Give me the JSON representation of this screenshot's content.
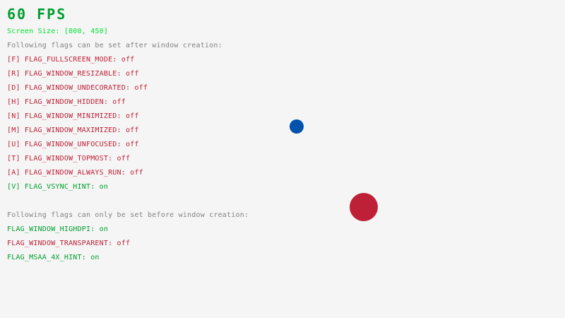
{
  "fps": {
    "text": "60 FPS",
    "color": "#009e2f"
  },
  "screen_size": {
    "text": "Screen Size: [800, 450]",
    "color": "#00e430"
  },
  "after_header": "Following flags can be set after window creation:",
  "after_flags": [
    {
      "text": "[F] FLAG_FULLSCREEN_MODE: off",
      "on": false
    },
    {
      "text": "[R] FLAG_WINDOW_RESIZABLE: off",
      "on": false
    },
    {
      "text": "[D] FLAG_WINDOW_UNDECORATED: off",
      "on": false
    },
    {
      "text": "[H] FLAG_WINDOW_HIDDEN: off",
      "on": false
    },
    {
      "text": "[N] FLAG_WINDOW_MINIMIZED: off",
      "on": false
    },
    {
      "text": "[M] FLAG_WINDOW_MAXIMIZED: off",
      "on": false
    },
    {
      "text": "[U] FLAG_WINDOW_UNFOCUSED: off",
      "on": false
    },
    {
      "text": "[T] FLAG_WINDOW_TOPMOST: off",
      "on": false
    },
    {
      "text": "[A] FLAG_WINDOW_ALWAYS_RUN: off",
      "on": false
    },
    {
      "text": "[V] FLAG_VSYNC_HINT: on",
      "on": true
    }
  ],
  "before_header": "Following flags can only be set before window creation:",
  "before_flags": [
    {
      "text": "FLAG_WINDOW_HIGHDPI: on",
      "on": true
    },
    {
      "text": "FLAG_WINDOW_TRANSPARENT: off",
      "on": false
    },
    {
      "text": "FLAG_MSAA_4X_HINT: on",
      "on": true
    }
  ],
  "colors": {
    "on": "#009e2f",
    "off": "#be2137",
    "header": "#828282",
    "background": "#f5f5f5",
    "blue_ball": "#0052ac",
    "red_ball": "#be2137"
  }
}
